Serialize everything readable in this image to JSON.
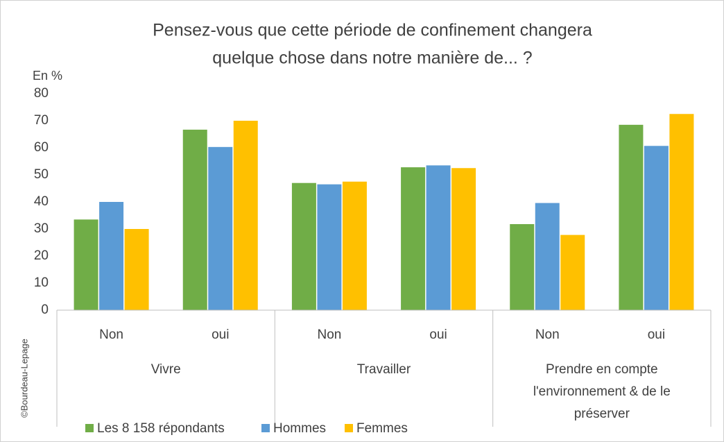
{
  "chart_data": {
    "type": "bar",
    "title": [
      "Pensez-vous que cette période de confinement changera",
      "quelque chose dans notre manière de... ?"
    ],
    "ylabel": "En %",
    "source": "©Bourdeau-Lepage",
    "categories": [
      "Non",
      "oui",
      "Non",
      "oui",
      "Non",
      "oui"
    ],
    "groups": [
      [
        "Vivre"
      ],
      [
        "Travailler"
      ],
      [
        "Prendre en compte",
        "l'environnement & de le",
        "préserver"
      ]
    ],
    "series": [
      {
        "name": "Les 8 158 répondants",
        "color": "#70ad47",
        "values": [
          33.5,
          66.7,
          47,
          52.8,
          31.8,
          68.5
        ]
      },
      {
        "name": "Hommes",
        "color": "#5b9bd5",
        "values": [
          40,
          60.3,
          46.5,
          53.5,
          39.6,
          60.7
        ]
      },
      {
        "name": "Femmes",
        "color": "#ffc000",
        "values": [
          30,
          70,
          47.5,
          52.5,
          27.8,
          72.5
        ]
      }
    ],
    "ylim": [
      0,
      80
    ],
    "yticks": [
      0,
      10,
      20,
      30,
      40,
      50,
      60,
      70,
      80
    ],
    "grid": false,
    "legend": "bottom"
  }
}
